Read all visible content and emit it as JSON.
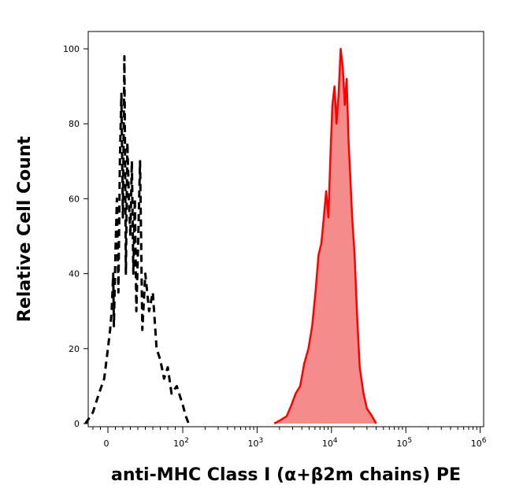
{
  "chart_data": {
    "type": "area",
    "title": "",
    "xlabel": "anti-MHC Class I (α+β2m chains) PE",
    "ylabel": "Relative Cell Count",
    "x_scale": "biexponential",
    "ylim": [
      0,
      100
    ],
    "grid": false,
    "legend": "none",
    "y_ticks": [
      0,
      20,
      40,
      60,
      80,
      100
    ],
    "y_tick_labels": [
      "0",
      "20",
      "40",
      "60",
      "80",
      "100"
    ],
    "x_ticks": [
      0,
      100,
      1000,
      10000,
      100000,
      1000000
    ],
    "x_tick_labels": [
      {
        "base": "0",
        "exp": ""
      },
      {
        "base": "10",
        "exp": "2"
      },
      {
        "base": "10",
        "exp": "3"
      },
      {
        "base": "10",
        "exp": "4"
      },
      {
        "base": "10",
        "exp": "5"
      },
      {
        "base": "10",
        "exp": "6"
      }
    ],
    "series": [
      {
        "style": "dashed",
        "color": "#000000",
        "filled": false,
        "x": [
          -30,
          -20,
          -12,
          -5,
          0,
          3,
          5,
          7,
          8,
          10,
          12,
          14,
          16,
          18,
          20,
          22,
          24,
          26,
          28,
          30,
          32,
          34,
          36,
          38,
          40,
          43,
          46,
          50,
          55,
          60,
          65,
          70,
          75,
          80,
          85,
          92,
          100,
          110,
          120
        ],
        "values": [
          0,
          3,
          8,
          12,
          20,
          25,
          30,
          40,
          26,
          45,
          60,
          35,
          70,
          88,
          55,
          98,
          40,
          75,
          60,
          50,
          70,
          40,
          60,
          30,
          45,
          70,
          25,
          40,
          30,
          35,
          20,
          17,
          12,
          15,
          8,
          10,
          5,
          2,
          0
        ]
      },
      {
        "style": "solid",
        "color": "#ff0000",
        "fill": "#f48c8c",
        "filled": true,
        "x": [
          1700,
          2100,
          2500,
          2900,
          3300,
          3800,
          4300,
          4900,
          5500,
          6100,
          6700,
          7300,
          7900,
          8500,
          9100,
          9700,
          10300,
          11000,
          11700,
          12500,
          13300,
          14200,
          15100,
          16000,
          17000,
          18000,
          19000,
          20500,
          22000,
          24000,
          27000,
          30000,
          35000,
          40000
        ],
        "values": [
          0,
          1,
          2,
          5,
          8,
          10,
          16,
          20,
          26,
          35,
          45,
          48,
          55,
          62,
          55,
          72,
          85,
          90,
          80,
          88,
          100,
          95,
          85,
          92,
          75,
          65,
          55,
          45,
          30,
          15,
          8,
          4,
          2,
          0
        ]
      }
    ]
  }
}
